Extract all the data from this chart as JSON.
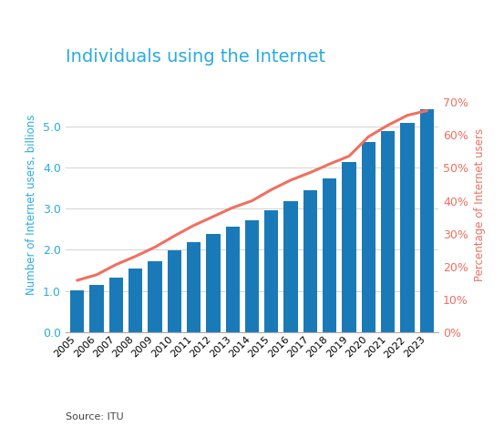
{
  "title": "Individuals using the Internet",
  "title_color": "#29ABE2",
  "title_fontsize": 14,
  "years": [
    2005,
    2006,
    2007,
    2008,
    2009,
    2010,
    2011,
    2012,
    2013,
    2014,
    2015,
    2016,
    2017,
    2018,
    2019,
    2020,
    2021,
    2022,
    2023
  ],
  "bar_values": [
    1.02,
    1.15,
    1.32,
    1.55,
    1.73,
    1.99,
    2.18,
    2.38,
    2.57,
    2.72,
    2.95,
    3.19,
    3.45,
    3.73,
    4.13,
    4.61,
    4.88,
    5.07,
    5.4
  ],
  "bar_color": "#1a7ab8",
  "line_values": [
    15.8,
    17.5,
    20.6,
    23.1,
    25.9,
    29.3,
    32.5,
    35.2,
    37.9,
    40.0,
    43.4,
    46.3,
    48.6,
    51.2,
    53.6,
    59.5,
    63.0,
    66.0,
    67.4
  ],
  "line_color": "#F07060",
  "line_width": 2.2,
  "ylabel_left": "Number of Internet users, billions",
  "ylabel_right": "Percentage of Internet users",
  "ylabel_left_color": "#29ABE2",
  "ylabel_right_color": "#F07060",
  "ylim_left": [
    0,
    6.2
  ],
  "ylim_right": [
    0,
    77.75
  ],
  "yticks_left": [
    0.0,
    1.0,
    2.0,
    3.0,
    4.0,
    5.0
  ],
  "yticks_right": [
    0,
    10,
    20,
    30,
    40,
    50,
    60,
    70
  ],
  "source_text": "Source: ITU",
  "background_color": "#ffffff"
}
